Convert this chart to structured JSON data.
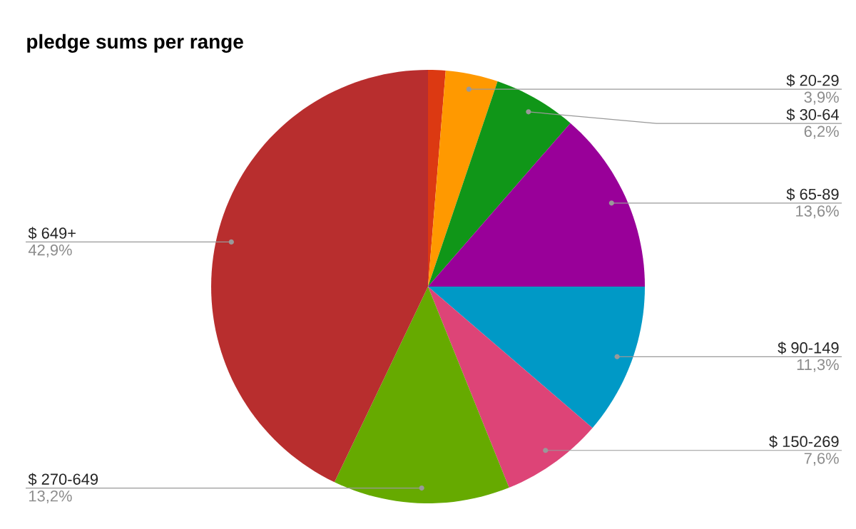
{
  "chart_data": {
    "type": "pie",
    "title": "pledge sums per range",
    "categories": [
      null,
      "$ 20-29",
      "$ 30-64",
      "$ 65-89",
      "$ 90-149",
      "$ 150-269",
      "$ 270-649",
      "$ 649+"
    ],
    "values": [
      1.3,
      3.9,
      6.2,
      13.6,
      11.3,
      7.6,
      13.2,
      42.9
    ],
    "value_labels": [
      null,
      "3,9%",
      "6,2%",
      "13,6%",
      "11,3%",
      "7,6%",
      "13,2%",
      "42,9%"
    ],
    "colors": [
      "#dc3912",
      "#ff9900",
      "#109618",
      "#990099",
      "#0099c6",
      "#dd4477",
      "#66aa00",
      "#b82e2e"
    ]
  }
}
